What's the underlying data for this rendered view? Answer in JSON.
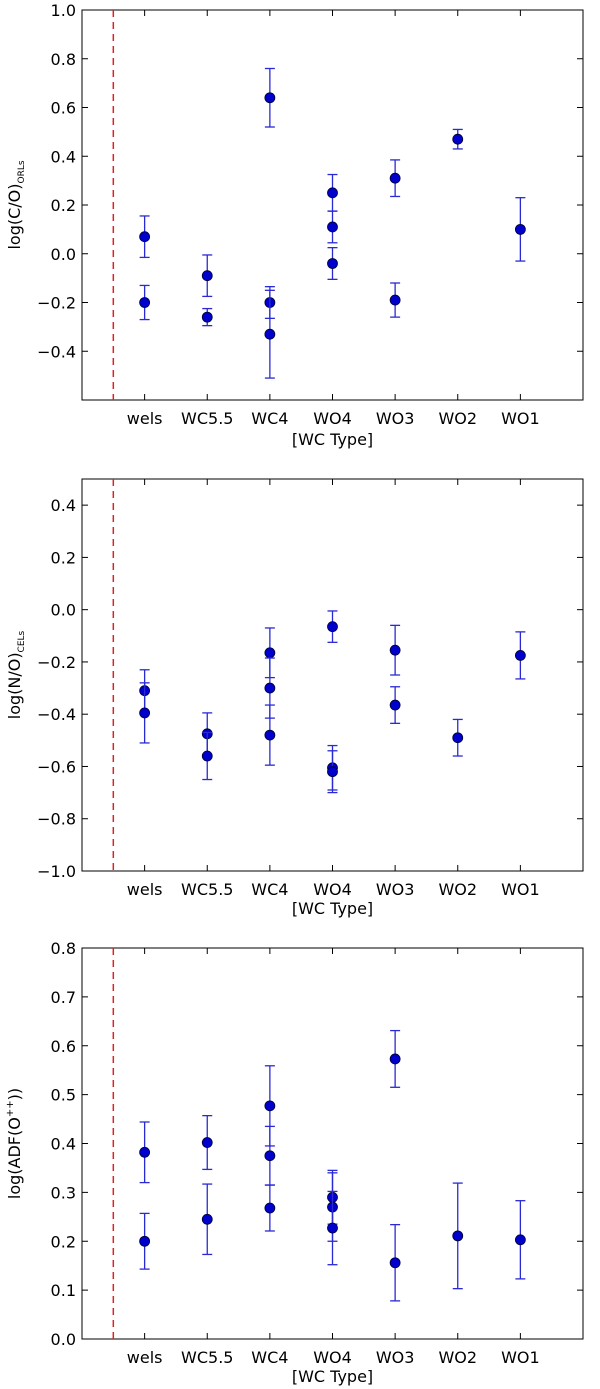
{
  "figure": {
    "background": "#ffffff",
    "marker_color": "#0000cc",
    "errorbar_color": "#2a2ad4",
    "separator_color": "#dd2222"
  },
  "chart_data": [
    {
      "type": "scatter",
      "title": "",
      "xlabel": "[WC Type]",
      "ylabel_main": "log(C/O)",
      "ylabel_sub": "ORLs",
      "ylabel_sup": "",
      "ylabel_tail": "",
      "categories": [
        "wels",
        "WC5.5",
        "WC4",
        "WO4",
        "WO3",
        "WO2",
        "WO1"
      ],
      "xlim": [
        -1,
        7
      ],
      "ylim": [
        -0.6,
        1.0
      ],
      "yticks": [
        -0.4,
        -0.2,
        0.0,
        0.2,
        0.4,
        0.6,
        0.8,
        1.0
      ],
      "ytick_labels": [
        "−0.4",
        "−0.2",
        "0.0",
        "0.2",
        "0.4",
        "0.6",
        "0.8",
        "1.0"
      ],
      "separator_x": -0.5,
      "points": [
        {
          "x": 0,
          "y": 0.07,
          "err": 0.085
        },
        {
          "x": 0,
          "y": -0.2,
          "err": 0.07
        },
        {
          "x": 1,
          "y": -0.09,
          "err": 0.085
        },
        {
          "x": 1,
          "y": -0.26,
          "err": 0.035
        },
        {
          "x": 2,
          "y": 0.64,
          "err": 0.12
        },
        {
          "x": 2,
          "y": -0.2,
          "err": 0.065
        },
        {
          "x": 2,
          "y": -0.33,
          "err": 0.18
        },
        {
          "x": 3,
          "y": 0.25,
          "err": 0.075
        },
        {
          "x": 3,
          "y": 0.11,
          "err": 0.065
        },
        {
          "x": 3,
          "y": -0.04,
          "err": 0.065
        },
        {
          "x": 4,
          "y": 0.31,
          "err": 0.075
        },
        {
          "x": 4,
          "y": -0.19,
          "err": 0.07
        },
        {
          "x": 5,
          "y": 0.47,
          "err": 0.04
        },
        {
          "x": 6,
          "y": 0.1,
          "err": 0.13
        }
      ]
    },
    {
      "type": "scatter",
      "title": "",
      "xlabel": "[WC Type]",
      "ylabel_main": "log(N/O)",
      "ylabel_sub": "CELs",
      "ylabel_sup": "",
      "ylabel_tail": "",
      "categories": [
        "wels",
        "WC5.5",
        "WC4",
        "WO4",
        "WO3",
        "WO2",
        "WO1"
      ],
      "xlim": [
        -1,
        7
      ],
      "ylim": [
        -1.0,
        0.5
      ],
      "yticks": [
        -1.0,
        -0.8,
        -0.6,
        -0.4,
        -0.2,
        0.0,
        0.2,
        0.4
      ],
      "ytick_labels": [
        "−1.0",
        "−0.8",
        "−0.6",
        "−0.4",
        "−0.2",
        "0.0",
        "0.2",
        "0.4"
      ],
      "separator_x": -0.5,
      "points": [
        {
          "x": 0,
          "y": -0.31,
          "err": 0.08
        },
        {
          "x": 0,
          "y": -0.395,
          "err": 0.115
        },
        {
          "x": 1,
          "y": -0.475,
          "err": 0.08
        },
        {
          "x": 1,
          "y": -0.56,
          "err": 0.09
        },
        {
          "x": 2,
          "y": -0.165,
          "err": 0.095
        },
        {
          "x": 2,
          "y": -0.3,
          "err": 0.115
        },
        {
          "x": 2,
          "y": -0.48,
          "err": 0.115
        },
        {
          "x": 3,
          "y": -0.065,
          "err": 0.06
        },
        {
          "x": 3,
          "y": -0.605,
          "err": 0.085
        },
        {
          "x": 3,
          "y": -0.62,
          "err": 0.08
        },
        {
          "x": 4,
          "y": -0.155,
          "err": 0.095
        },
        {
          "x": 4,
          "y": -0.365,
          "err": 0.07
        },
        {
          "x": 5,
          "y": -0.49,
          "err": 0.07
        },
        {
          "x": 6,
          "y": -0.175,
          "err": 0.09
        }
      ]
    },
    {
      "type": "scatter",
      "title": "",
      "xlabel": "[WC Type]",
      "ylabel_main": "log(ADF(O",
      "ylabel_sub": "",
      "ylabel_sup": "++",
      "ylabel_tail": "))",
      "categories": [
        "wels",
        "WC5.5",
        "WC4",
        "WO4",
        "WO3",
        "WO2",
        "WO1"
      ],
      "xlim": [
        -1,
        7
      ],
      "ylim": [
        0.0,
        0.8
      ],
      "yticks": [
        0.0,
        0.1,
        0.2,
        0.3,
        0.4,
        0.5,
        0.6,
        0.7,
        0.8
      ],
      "ytick_labels": [
        "0.0",
        "0.1",
        "0.2",
        "0.3",
        "0.4",
        "0.5",
        "0.6",
        "0.7",
        "0.8"
      ],
      "separator_x": -0.5,
      "points": [
        {
          "x": 0,
          "y": 0.382,
          "err": 0.062
        },
        {
          "x": 0,
          "y": 0.2,
          "err": 0.057
        },
        {
          "x": 1,
          "y": 0.402,
          "err": 0.055
        },
        {
          "x": 1,
          "y": 0.245,
          "err": 0.072
        },
        {
          "x": 2,
          "y": 0.477,
          "err": 0.082
        },
        {
          "x": 2,
          "y": 0.375,
          "err": 0.06
        },
        {
          "x": 2,
          "y": 0.268,
          "err": 0.047
        },
        {
          "x": 3,
          "y": 0.29,
          "err": 0.055
        },
        {
          "x": 3,
          "y": 0.27,
          "err": 0.07
        },
        {
          "x": 3,
          "y": 0.227,
          "err": 0.075
        },
        {
          "x": 4,
          "y": 0.573,
          "err": 0.058
        },
        {
          "x": 4,
          "y": 0.156,
          "err": 0.078
        },
        {
          "x": 5,
          "y": 0.211,
          "err": 0.108
        },
        {
          "x": 6,
          "y": 0.203,
          "err": 0.08
        }
      ]
    }
  ]
}
